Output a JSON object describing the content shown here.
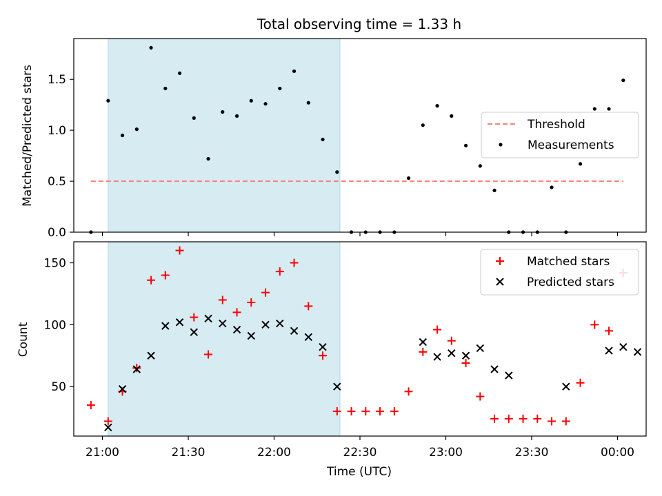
{
  "chart_data": [
    {
      "type": "scatter",
      "title": "Total observing time = 1.33 h",
      "ylabel": "Matched/Predicted stars",
      "xlabel": "",
      "xlim": [
        "20:50",
        "00:10"
      ],
      "ylim": [
        0,
        1.9
      ],
      "yticks": [
        0.0,
        0.5,
        1.0,
        1.5
      ],
      "ytick_labels": [
        "0.0",
        "0.5",
        "1.0",
        "1.5"
      ],
      "shaded_span": {
        "start": "21:02",
        "end": "22:23",
        "color": "#add8e6"
      },
      "threshold": {
        "name": "Threshold",
        "value": 0.5,
        "x_start": "20:56",
        "x_end": "00:02",
        "color": "#ff7f7f"
      },
      "legend": {
        "position": "center-right",
        "entries": [
          "Threshold",
          "Measurements"
        ]
      },
      "series": [
        {
          "name": "Measurements",
          "marker": "dot",
          "color": "#000000",
          "x": [
            "20:56",
            "21:02",
            "21:07",
            "21:12",
            "21:17",
            "21:22",
            "21:27",
            "21:32",
            "21:37",
            "21:42",
            "21:47",
            "21:52",
            "21:57",
            "22:02",
            "22:07",
            "22:12",
            "22:17",
            "22:22",
            "22:27",
            "22:32",
            "22:37",
            "22:42",
            "22:47",
            "22:52",
            "22:57",
            "23:02",
            "23:07",
            "23:12",
            "23:17",
            "23:22",
            "23:27",
            "23:32",
            "23:37",
            "23:42",
            "23:47",
            "23:52",
            "23:57",
            "00:02"
          ],
          "y": [
            0.0,
            1.29,
            0.95,
            1.01,
            1.81,
            1.41,
            1.56,
            1.12,
            0.72,
            1.18,
            1.14,
            1.29,
            1.26,
            1.41,
            1.58,
            1.27,
            0.91,
            0.59,
            0.0,
            0.0,
            0.0,
            0.0,
            0.53,
            1.05,
            1.24,
            1.14,
            0.85,
            0.65,
            0.41,
            0.0,
            0.0,
            0.0,
            0.44,
            0.0,
            0.67,
            1.21,
            1.21,
            1.49
          ]
        }
      ]
    },
    {
      "type": "scatter",
      "title": "",
      "ylabel": "Count",
      "xlabel": "Time (UTC)",
      "xlim": [
        "20:50",
        "00:10"
      ],
      "ylim": [
        10,
        167
      ],
      "yticks": [
        50,
        100,
        150
      ],
      "ytick_labels": [
        "50",
        "100",
        "150"
      ],
      "xticks": [
        "21:00",
        "21:30",
        "22:00",
        "22:30",
        "23:00",
        "23:30",
        "00:00"
      ],
      "xtick_labels": [
        "21:00",
        "21:30",
        "22:00",
        "22:30",
        "23:00",
        "23:30",
        "00:00"
      ],
      "shaded_span": {
        "start": "21:02",
        "end": "22:23",
        "color": "#add8e6"
      },
      "legend": {
        "position": "top-right",
        "entries": [
          "Matched stars",
          "Predicted stars"
        ]
      },
      "series": [
        {
          "name": "Matched stars",
          "marker": "plus",
          "color": "#ff0000",
          "x": [
            "20:56",
            "21:02",
            "21:07",
            "21:12",
            "21:17",
            "21:22",
            "21:27",
            "21:32",
            "21:37",
            "21:42",
            "21:47",
            "21:52",
            "21:57",
            "22:02",
            "22:07",
            "22:12",
            "22:17",
            "22:22",
            "22:27",
            "22:32",
            "22:37",
            "22:42",
            "22:47",
            "22:52",
            "22:57",
            "23:02",
            "23:07",
            "23:12",
            "23:17",
            "23:22",
            "23:27",
            "23:32",
            "23:37",
            "23:42",
            "23:47",
            "23:52",
            "23:57",
            "00:02"
          ],
          "y": [
            35,
            22,
            46,
            65,
            136,
            140,
            160,
            106,
            76,
            120,
            110,
            118,
            126,
            143,
            150,
            115,
            75,
            30,
            30,
            30,
            30,
            30,
            46,
            78,
            96,
            87,
            69,
            42,
            24,
            24,
            24,
            24,
            22,
            22,
            53,
            100,
            95,
            142
          ]
        },
        {
          "name": "Predicted stars",
          "marker": "x",
          "color": "#000000",
          "x": [
            "21:02",
            "21:07",
            "21:12",
            "21:17",
            "21:22",
            "21:27",
            "21:32",
            "21:37",
            "21:42",
            "21:47",
            "21:52",
            "21:57",
            "22:02",
            "22:07",
            "22:12",
            "22:17",
            "22:22",
            "22:52",
            "22:57",
            "23:02",
            "23:07",
            "23:12",
            "23:17",
            "23:22",
            "23:42",
            "23:57",
            "00:02",
            "00:07"
          ],
          "y": [
            17,
            48,
            64,
            75,
            99,
            102,
            94,
            105,
            101,
            96,
            91,
            100,
            101,
            95,
            90,
            82,
            50,
            86,
            74,
            77,
            75,
            81,
            64,
            59,
            50,
            79,
            82,
            78
          ]
        }
      ]
    }
  ]
}
